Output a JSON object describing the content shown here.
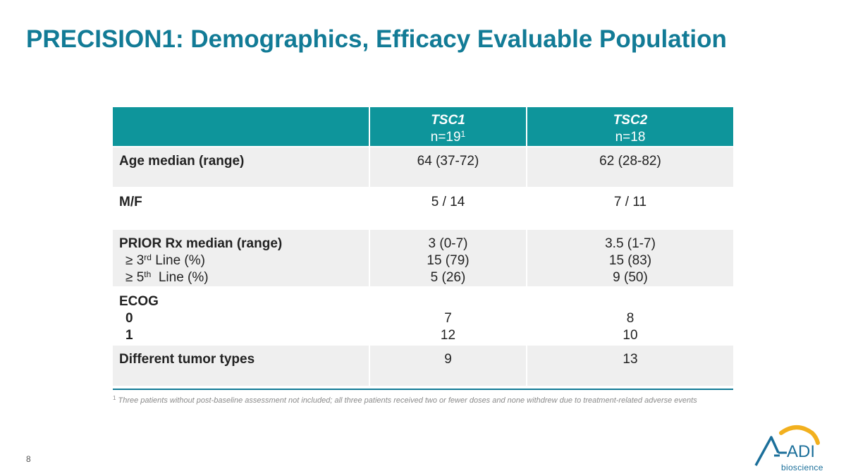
{
  "title": "PRECISION1: Demographics, Efficacy Evaluable Population",
  "table": {
    "columns": [
      {
        "gene": "TSC1",
        "n": "n=19",
        "n_sup": "1"
      },
      {
        "gene": "TSC2",
        "n": "n=18",
        "n_sup": ""
      }
    ],
    "age": {
      "label": "Age median (range)",
      "tsc1": "64 (37-72)",
      "tsc2": "62 (28-82)"
    },
    "mf": {
      "label": "M/F",
      "tsc1": "5 / 14",
      "tsc2": "7 / 11"
    },
    "prior": {
      "label": "PRIOR Rx median (range)",
      "line3_pre": "≥ 3",
      "line3_sup": "rd",
      "line3_post": " Line (%)",
      "line5_pre": "≥ 5",
      "line5_sup": "th",
      "line5_post": "  Line (%)",
      "tsc1": [
        "3 (0-7)",
        "15 (79)",
        "5 (26)"
      ],
      "tsc2": [
        "3.5 (1-7)",
        "15 (83)",
        "9 (50)"
      ]
    },
    "ecog": {
      "label": "ECOG",
      "sub": [
        "0",
        "1"
      ],
      "tsc1": [
        "7",
        "12"
      ],
      "tsc2": [
        "8",
        "10"
      ]
    },
    "tumor": {
      "label": "Different tumor types",
      "tsc1": "9",
      "tsc2": "13"
    }
  },
  "footnote": {
    "sup": "1",
    "text": " Three patients without post-baseline assessment not included; all three patients received two or fewer doses and none withdrew due to treatment-related adverse events"
  },
  "page_number": "8",
  "logo": {
    "text": "bioscience",
    "accent_color": "#f2b01e",
    "brand_color": "#1b6f9a"
  }
}
